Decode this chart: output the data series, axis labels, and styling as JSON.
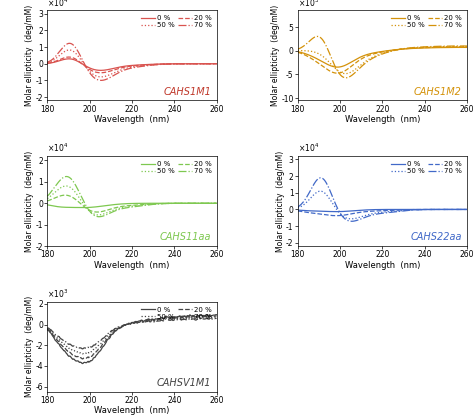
{
  "panels": [
    {
      "name": "CAHS1M1",
      "color": "#d9534f",
      "label_color": "#c0392b",
      "ylim": [
        -22000.0,
        32000.0
      ],
      "yticks": [
        -20000.0,
        -10000.0,
        0,
        10000.0,
        20000.0,
        30000.0
      ],
      "ytick_labels": [
        "-2",
        "-1",
        "0",
        "1",
        "2",
        "3"
      ],
      "yexp": 4,
      "ylabel": "Molar ellipticity  (deg/mM)",
      "xlabel": "Wavelength  (nm)"
    },
    {
      "name": "CAHS1M2",
      "color": "#d4920a",
      "label_color": "#d4920a",
      "ylim": [
        -10500.0,
        8500.0
      ],
      "yticks": [
        -10000.0,
        -5000.0,
        0,
        5000.0
      ],
      "ytick_labels": [
        "-10",
        "-5",
        "0",
        "5"
      ],
      "yexp": 3,
      "ylabel": "Molar ellipticity  (deg/mM)",
      "xlabel": "Wavelength  (nm)"
    },
    {
      "name": "CAHS11aa",
      "color": "#7ec850",
      "label_color": "#7ec850",
      "ylim": [
        -20000.0,
        22000.0
      ],
      "yticks": [
        -20000.0,
        -10000.0,
        0,
        10000.0,
        20000.0
      ],
      "ytick_labels": [
        "-2",
        "-1",
        "0",
        "1",
        "2"
      ],
      "yexp": 4,
      "ylabel": "Molar ellipticity  (deg/mM)",
      "xlabel": "Wavelength  (nm)"
    },
    {
      "name": "CAHS22aa",
      "color": "#4169c8",
      "label_color": "#4169c8",
      "ylim": [
        -22000.0,
        32000.0
      ],
      "yticks": [
        -20000.0,
        -10000.0,
        0,
        10000.0,
        20000.0,
        30000.0
      ],
      "ytick_labels": [
        "-2",
        "-1",
        "0",
        "1",
        "2",
        "3"
      ],
      "yexp": 4,
      "ylabel": "Molar ellipticity  (deg/mM)",
      "xlabel": "Wavelength  (nm)"
    },
    {
      "name": "CAHSV1M1",
      "color": "#444444",
      "label_color": "#444444",
      "ylim": [
        -6500.0,
        2200.0
      ],
      "yticks": [
        -6000.0,
        -4000.0,
        -2000.0,
        0,
        2000.0
      ],
      "ytick_labels": [
        "-6",
        "-4",
        "-2",
        "0",
        "2"
      ],
      "yexp": 3,
      "ylabel": "Molar ellipticity  (deg/mM)",
      "xlabel": "Wavelength  (nm)"
    }
  ]
}
